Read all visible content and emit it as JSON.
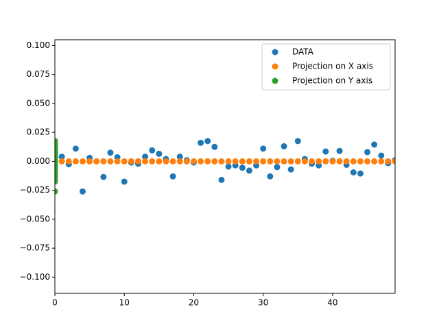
{
  "chart_data": {
    "type": "scatter",
    "xlim": [
      0,
      49
    ],
    "ylim": [
      -0.114,
      0.105
    ],
    "xticks": [
      0,
      10,
      20,
      30,
      40
    ],
    "yticks": [
      {
        "value": -0.1,
        "label": "−0.100"
      },
      {
        "value": -0.075,
        "label": "−0.075"
      },
      {
        "value": -0.05,
        "label": "−0.050"
      },
      {
        "value": -0.025,
        "label": "−0.025"
      },
      {
        "value": 0,
        "label": "0.000"
      },
      {
        "value": 0.025,
        "label": "0.025"
      },
      {
        "value": 0.05,
        "label": "0.050"
      },
      {
        "value": 0.075,
        "label": "0.075"
      },
      {
        "value": 0.1,
        "label": "0.100"
      }
    ],
    "legend": "upper right",
    "series": [
      {
        "name": "DATA",
        "color": "#1f77b4",
        "x": [
          0,
          1,
          2,
          3,
          4,
          5,
          6,
          7,
          8,
          9,
          10,
          11,
          12,
          13,
          14,
          15,
          16,
          17,
          18,
          19,
          20,
          21,
          22,
          23,
          24,
          25,
          26,
          27,
          28,
          29,
          30,
          31,
          32,
          33,
          34,
          35,
          36,
          37,
          38,
          39,
          40,
          41,
          42,
          43,
          44,
          45,
          46,
          47,
          48,
          49
        ],
        "values": [
          0.001,
          0.004,
          -0.0025,
          0.011,
          -0.026,
          0.003,
          0,
          -0.0135,
          0.0075,
          0.0035,
          -0.0175,
          -0.001,
          -0.002,
          0.004,
          0.0095,
          0.0065,
          0.002,
          -0.013,
          0.004,
          0.001,
          -0.001,
          0.016,
          0.0175,
          0.0125,
          -0.016,
          -0.0045,
          -0.0035,
          -0.0055,
          -0.008,
          -0.0035,
          0.011,
          -0.013,
          -0.005,
          0.013,
          -0.007,
          0.0175,
          0.002,
          -0.002,
          -0.0035,
          0.0085,
          0.0005,
          0.009,
          -0.003,
          -0.0095,
          -0.0105,
          0.008,
          0.0145,
          0.005,
          -0.0015,
          0.001
        ]
      },
      {
        "name": "Projection on X axis",
        "color": "#ff7f0e",
        "x": [
          0,
          1,
          2,
          3,
          4,
          5,
          6,
          7,
          8,
          9,
          10,
          11,
          12,
          13,
          14,
          15,
          16,
          17,
          18,
          19,
          20,
          21,
          22,
          23,
          24,
          25,
          26,
          27,
          28,
          29,
          30,
          31,
          32,
          33,
          34,
          35,
          36,
          37,
          38,
          39,
          40,
          41,
          42,
          43,
          44,
          45,
          46,
          47,
          48,
          49
        ],
        "values": [
          0,
          0,
          0,
          0,
          0,
          0,
          0,
          0,
          0,
          0,
          0,
          0,
          0,
          0,
          0,
          0,
          0,
          0,
          0,
          0,
          0,
          0,
          0,
          0,
          0,
          0,
          0,
          0,
          0,
          0,
          0,
          0,
          0,
          0,
          0,
          0,
          0,
          0,
          0,
          0,
          0,
          0,
          0,
          0,
          0,
          0,
          0,
          0,
          0,
          0
        ]
      },
      {
        "name": "Projection on Y axis",
        "color": "#2ca02c",
        "x": [
          0,
          0,
          0,
          0,
          0,
          0,
          0,
          0,
          0,
          0,
          0,
          0,
          0,
          0,
          0,
          0,
          0,
          0,
          0,
          0,
          0,
          0,
          0,
          0,
          0,
          0,
          0,
          0,
          0,
          0,
          0,
          0,
          0,
          0,
          0,
          0,
          0,
          0,
          0,
          0,
          0,
          0,
          0,
          0,
          0,
          0,
          0,
          0,
          0,
          0
        ],
        "values": [
          0.001,
          0.004,
          -0.0025,
          0.011,
          -0.026,
          0.003,
          0,
          -0.0135,
          0.0075,
          0.0035,
          -0.0175,
          -0.001,
          -0.002,
          0.004,
          0.0095,
          0.0065,
          0.002,
          -0.013,
          0.004,
          0.001,
          -0.001,
          0.016,
          0.0175,
          0.0125,
          -0.016,
          -0.0045,
          -0.0035,
          -0.0055,
          -0.008,
          -0.0035,
          0.011,
          -0.013,
          -0.005,
          0.013,
          -0.007,
          0.0175,
          0.002,
          -0.002,
          -0.0035,
          0.0085,
          0.0005,
          0.009,
          -0.003,
          -0.0095,
          -0.0105,
          0.008,
          0.0145,
          0.005,
          -0.0015,
          0.001
        ]
      }
    ]
  }
}
